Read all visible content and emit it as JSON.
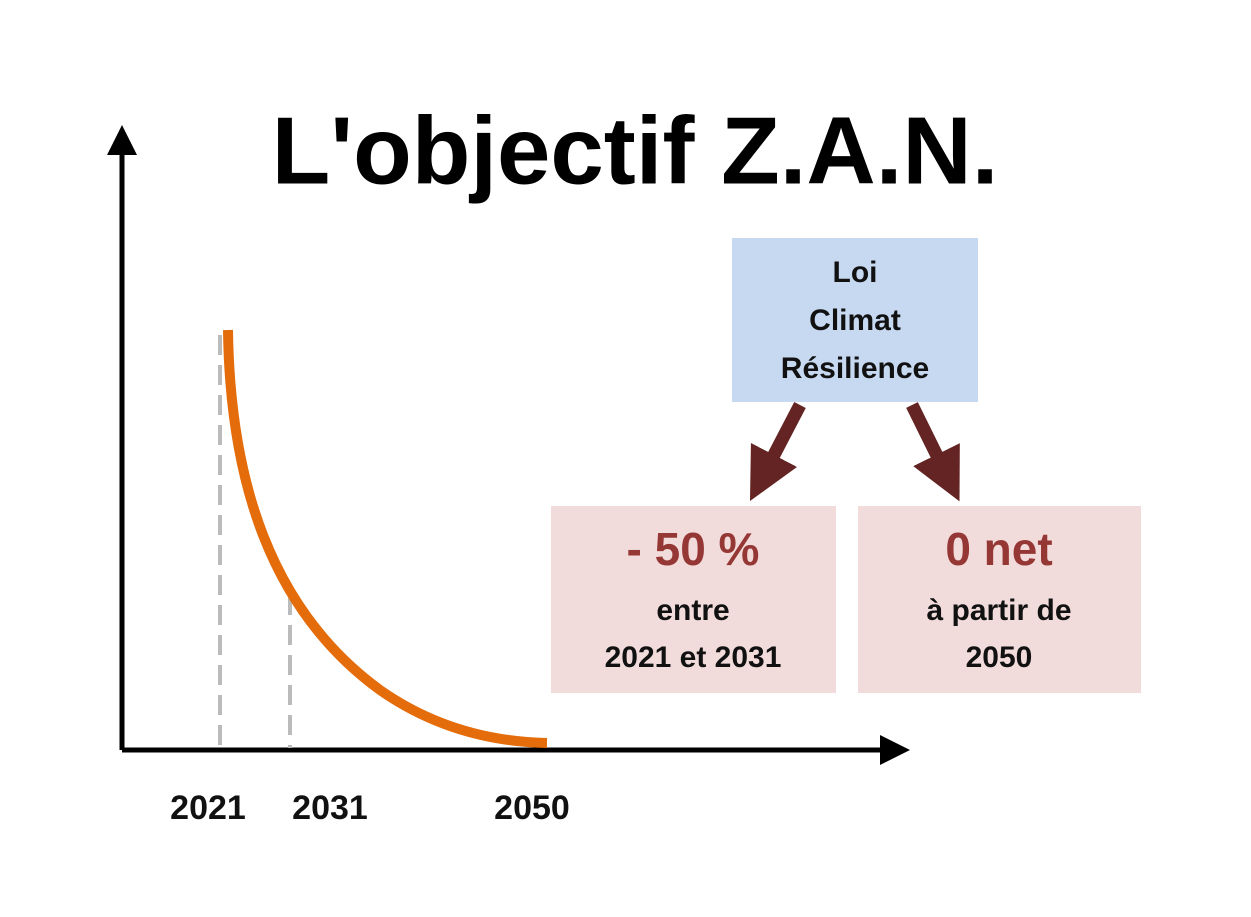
{
  "title": "L'objectif Z.A.N.",
  "axis": {
    "labels": [
      "2021",
      "2031",
      "2050"
    ]
  },
  "source_box": {
    "lines": [
      "Loi",
      "Climat",
      "Résilience"
    ]
  },
  "boxes": [
    {
      "headline": "- 50 %",
      "lines": [
        "entre",
        "2021 et 2031"
      ]
    },
    {
      "headline": "0 net",
      "lines": [
        "à partir de",
        "2050"
      ]
    }
  ]
}
